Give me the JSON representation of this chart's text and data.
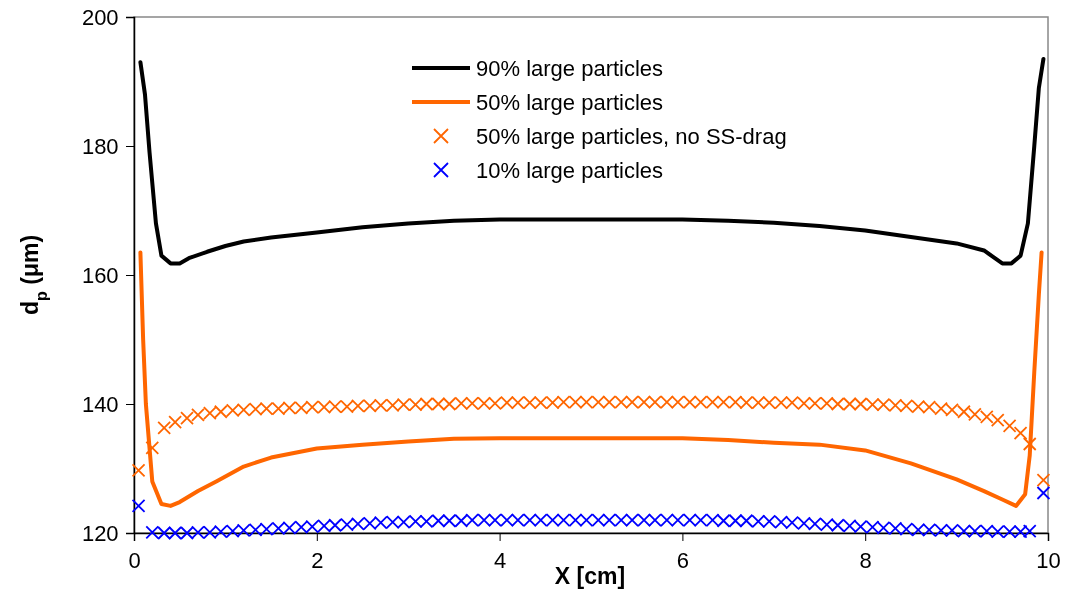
{
  "chart_data": {
    "type": "line",
    "xlabel": "X [cm]",
    "ylabel": "d$_{p}$ (μm)",
    "xlim": [
      0,
      10
    ],
    "xticks": [
      0,
      2,
      4,
      6,
      8,
      10
    ],
    "ylim": [
      120,
      200
    ],
    "yticks": [
      120,
      140,
      160,
      180,
      200
    ],
    "legend": "top",
    "grid": false,
    "x": [
      0.05,
      0.2,
      0.33,
      0.45,
      0.58,
      0.7,
      0.83,
      0.95,
      1.08,
      1.2,
      1.33,
      1.45,
      1.58,
      1.7,
      1.83,
      1.95,
      2.08,
      2.2,
      2.33,
      2.45,
      2.58,
      2.7,
      2.83,
      2.95,
      3.08,
      3.2,
      3.33,
      3.45,
      3.58,
      3.7,
      3.83,
      3.95,
      4.08,
      4.2,
      4.33,
      4.45,
      4.58,
      4.7,
      4.83,
      4.95,
      5.08,
      5.2,
      5.33,
      5.45,
      5.58,
      5.7,
      5.83,
      5.95,
      6.08,
      6.2,
      6.33,
      6.45,
      6.58,
      6.7,
      6.83,
      6.95,
      7.08,
      7.2,
      7.33,
      7.45,
      7.58,
      7.7,
      7.83,
      7.95,
      8.08,
      8.2,
      8.33,
      8.45,
      8.58,
      8.7,
      8.83,
      8.95,
      9.08,
      9.2,
      9.33,
      9.45,
      9.58,
      9.7,
      9.8,
      9.95
    ],
    "series": [
      {
        "name": "90% large particles",
        "type": "line",
        "color": "#000000",
        "line_style": "solid",
        "x": [
          0.07,
          0.12,
          0.17,
          0.24,
          0.3,
          0.4,
          0.5,
          0.6,
          0.8,
          1.0,
          1.2,
          1.5,
          2,
          2.5,
          3,
          3.5,
          4,
          5,
          6,
          6.5,
          7,
          7.5,
          8,
          8.5,
          9,
          9.3,
          9.5,
          9.6,
          9.7,
          9.78,
          9.85,
          9.9,
          9.95
        ],
        "values": [
          193,
          188,
          179,
          168,
          163,
          161.8,
          161.8,
          162.6,
          163.6,
          164.5,
          165.2,
          165.8,
          166.6,
          167.4,
          168,
          168.4,
          168.6,
          168.6,
          168.6,
          168.4,
          168.1,
          167.6,
          166.9,
          165.9,
          164.9,
          163.8,
          161.8,
          161.8,
          163,
          168,
          180,
          189,
          193.5
        ]
      },
      {
        "name": "50% large particles",
        "type": "line",
        "color": "#ff6600",
        "line_style": "solid",
        "x": [
          0.07,
          0.1,
          0.13,
          0.2,
          0.3,
          0.4,
          0.5,
          0.7,
          0.9,
          1.2,
          1.5,
          2,
          2.5,
          3,
          3.5,
          4,
          5,
          6,
          6.5,
          7,
          7.5,
          8,
          8.5,
          9,
          9.3,
          9.5,
          9.65,
          9.75,
          9.8,
          9.85,
          9.9,
          9.93
        ],
        "values": [
          163.5,
          150,
          140,
          128,
          124.5,
          124.2,
          124.8,
          126.5,
          128,
          130.3,
          131.7,
          133.1,
          133.7,
          134.2,
          134.6,
          134.7,
          134.7,
          134.7,
          134.4,
          134,
          133.7,
          132.8,
          130.8,
          128.3,
          126.5,
          125.2,
          124.2,
          126,
          132,
          145,
          157,
          163.5
        ]
      },
      {
        "name": "50% large particles, no SS-drag",
        "type": "scatter",
        "marker": "cross",
        "color": "#ff6600",
        "values": [
          129.7,
          133.2,
          136.3,
          137.2,
          137.8,
          138.3,
          138.6,
          138.8,
          139.0,
          139.1,
          139.2,
          139.3,
          139.3,
          139.4,
          139.4,
          139.5,
          139.5,
          139.6,
          139.6,
          139.7,
          139.7,
          139.8,
          139.8,
          139.9,
          139.9,
          140.0,
          140.0,
          140.0,
          140.1,
          140.1,
          140.1,
          140.1,
          140.2,
          140.2,
          140.2,
          140.2,
          140.2,
          140.3,
          140.3,
          140.3,
          140.3,
          140.3,
          140.3,
          140.3,
          140.3,
          140.3,
          140.3,
          140.3,
          140.3,
          140.3,
          140.3,
          140.3,
          140.3,
          140.2,
          140.2,
          140.2,
          140.2,
          140.2,
          140.1,
          140.1,
          140.1,
          140.0,
          140.0,
          140.0,
          139.9,
          139.9,
          139.8,
          139.7,
          139.6,
          139.5,
          139.3,
          139.1,
          138.8,
          138.4,
          138.0,
          137.5,
          136.6,
          135.5,
          133.8,
          128.2
        ]
      },
      {
        "name": "10% large particles",
        "type": "scatter",
        "marker": "cross",
        "color": "#0000ff",
        "values": [
          124.2,
          120.1,
          120.0,
          120.0,
          120.0,
          120.1,
          120.1,
          120.2,
          120.3,
          120.4,
          120.5,
          120.6,
          120.7,
          120.8,
          120.9,
          121.0,
          121.1,
          121.2,
          121.3,
          121.4,
          121.5,
          121.6,
          121.7,
          121.7,
          121.8,
          121.8,
          121.9,
          121.9,
          121.9,
          122.0,
          122.0,
          122.0,
          122.0,
          122.0,
          122.0,
          122.0,
          122.0,
          122.0,
          122.0,
          122.0,
          122.0,
          122.0,
          122.0,
          122.0,
          122.0,
          122.0,
          122.0,
          122.0,
          122.0,
          122.0,
          122.0,
          121.9,
          121.9,
          121.9,
          121.8,
          121.8,
          121.7,
          121.6,
          121.5,
          121.4,
          121.3,
          121.2,
          121.1,
          121.0,
          120.9,
          120.8,
          120.7,
          120.6,
          120.5,
          120.5,
          120.4,
          120.4,
          120.3,
          120.3,
          120.3,
          120.2,
          120.2,
          120.2,
          120.3,
          126.2
        ]
      }
    ]
  }
}
